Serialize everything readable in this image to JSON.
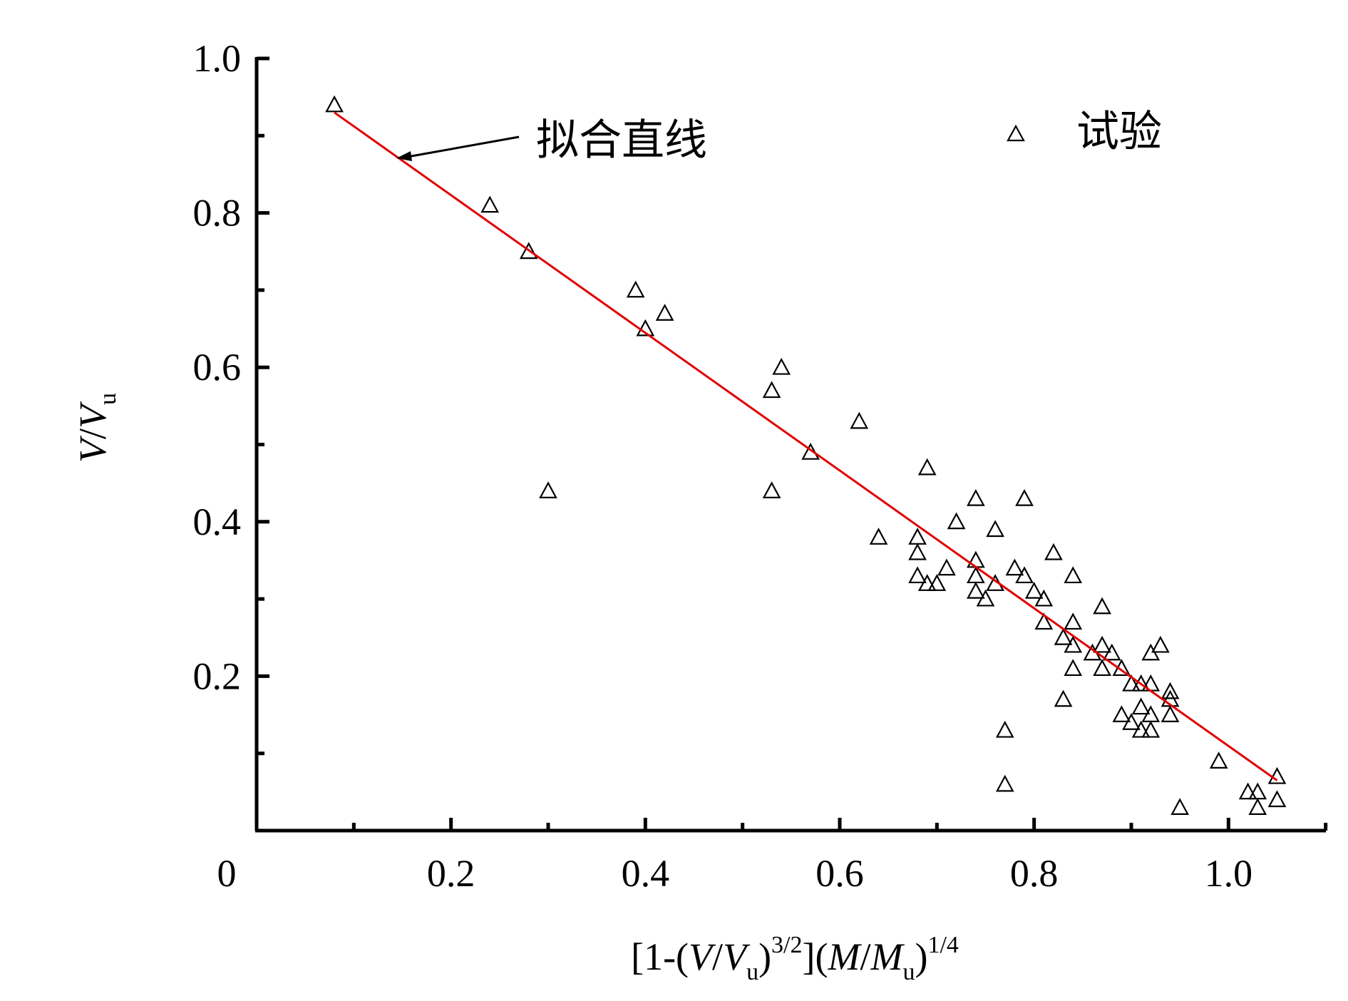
{
  "chart_data": {
    "type": "scatter",
    "xlabel": "[1-(V/Vu)3/2](M/Mu)1/4",
    "ylabel": "V/Vu",
    "xlim": [
      0,
      1.1
    ],
    "ylim": [
      0,
      1.0
    ],
    "x_ticks": [
      0,
      0.2,
      0.4,
      0.6,
      0.8,
      1.0
    ],
    "x_tick_labels": [
      "0",
      "0.2",
      "0.4",
      "0.6",
      "0.8",
      "1.0"
    ],
    "y_ticks": [
      0.2,
      0.4,
      0.6,
      0.8,
      1.0
    ],
    "y_tick_labels": [
      "0.2",
      "0.4",
      "0.6",
      "0.8",
      "1.0"
    ],
    "grid": false,
    "legend": {
      "position": "top-right",
      "entries": [
        {
          "label": "试验",
          "marker": "triangle-open"
        }
      ]
    },
    "annotations": [
      {
        "text": "拟合直线",
        "points_to": "fitted line",
        "at_x": 0.15
      }
    ],
    "fit_line": {
      "x": [
        0.08,
        1.05
      ],
      "y": [
        0.93,
        0.065
      ],
      "color": "#e00000"
    },
    "series": [
      {
        "name": "试验",
        "marker": "triangle-open",
        "x": [
          0.08,
          0.24,
          0.28,
          0.3,
          0.39,
          0.4,
          0.42,
          0.53,
          0.53,
          0.54,
          0.57,
          0.62,
          0.64,
          0.68,
          0.68,
          0.68,
          0.69,
          0.69,
          0.7,
          0.71,
          0.72,
          0.74,
          0.74,
          0.74,
          0.74,
          0.75,
          0.76,
          0.76,
          0.77,
          0.77,
          0.78,
          0.79,
          0.79,
          0.8,
          0.81,
          0.81,
          0.82,
          0.83,
          0.83,
          0.84,
          0.84,
          0.84,
          0.84,
          0.86,
          0.87,
          0.87,
          0.87,
          0.88,
          0.89,
          0.89,
          0.9,
          0.9,
          0.91,
          0.91,
          0.91,
          0.92,
          0.92,
          0.92,
          0.92,
          0.93,
          0.94,
          0.94,
          0.94,
          0.95,
          0.99,
          1.02,
          1.03,
          1.03,
          1.05,
          1.05
        ],
        "y": [
          0.94,
          0.81,
          0.75,
          0.44,
          0.7,
          0.65,
          0.67,
          0.57,
          0.44,
          0.6,
          0.49,
          0.53,
          0.38,
          0.38,
          0.36,
          0.33,
          0.32,
          0.47,
          0.32,
          0.34,
          0.4,
          0.43,
          0.35,
          0.33,
          0.31,
          0.3,
          0.39,
          0.32,
          0.13,
          0.06,
          0.34,
          0.43,
          0.33,
          0.31,
          0.3,
          0.27,
          0.36,
          0.25,
          0.17,
          0.33,
          0.27,
          0.24,
          0.21,
          0.23,
          0.29,
          0.24,
          0.21,
          0.23,
          0.21,
          0.15,
          0.19,
          0.14,
          0.16,
          0.13,
          0.19,
          0.23,
          0.19,
          0.15,
          0.13,
          0.24,
          0.18,
          0.17,
          0.15,
          0.03,
          0.09,
          0.05,
          0.05,
          0.03,
          0.07,
          0.04
        ]
      }
    ]
  }
}
